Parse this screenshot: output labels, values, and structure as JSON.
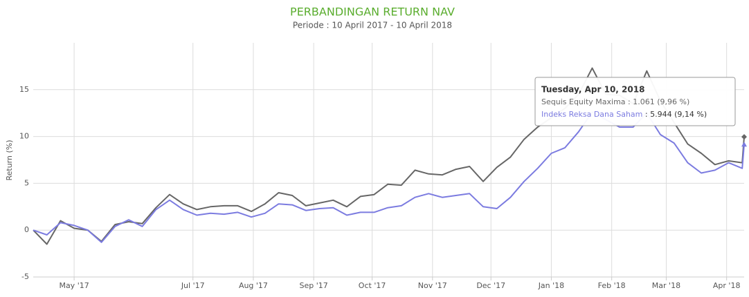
{
  "chart_data": {
    "type": "line",
    "title": "PERBANDINGAN RETURN NAV",
    "subtitle": "Periode : 10 April 2017 - 10 April 2018",
    "y_label": "Return (%)",
    "x": [
      "2017-04-10",
      "2017-04-17",
      "2017-04-24",
      "2017-05-01",
      "2017-05-08",
      "2017-05-15",
      "2017-05-22",
      "2017-05-29",
      "2017-06-05",
      "2017-06-12",
      "2017-06-19",
      "2017-06-26",
      "2017-07-03",
      "2017-07-10",
      "2017-07-17",
      "2017-07-24",
      "2017-07-31",
      "2017-08-07",
      "2017-08-14",
      "2017-08-21",
      "2017-08-28",
      "2017-09-04",
      "2017-09-11",
      "2017-09-18",
      "2017-09-25",
      "2017-10-02",
      "2017-10-09",
      "2017-10-16",
      "2017-10-23",
      "2017-10-30",
      "2017-11-06",
      "2017-11-13",
      "2017-11-20",
      "2017-11-27",
      "2017-12-04",
      "2017-12-11",
      "2017-12-18",
      "2017-12-25",
      "2018-01-01",
      "2018-01-08",
      "2018-01-15",
      "2018-01-22",
      "2018-01-29",
      "2018-02-05",
      "2018-02-12",
      "2018-02-19",
      "2018-02-26",
      "2018-03-05",
      "2018-03-12",
      "2018-03-19",
      "2018-03-26",
      "2018-04-02",
      "2018-04-09",
      "2018-04-10"
    ],
    "series": [
      {
        "name": "Sequis Equity Maxima",
        "color": "#666666",
        "marker": "diamond",
        "values": [
          0,
          -1.5,
          1.0,
          0.2,
          0.0,
          -1.2,
          0.6,
          0.9,
          0.7,
          2.4,
          3.8,
          2.8,
          2.2,
          2.5,
          2.6,
          2.6,
          2.0,
          2.8,
          4.0,
          3.7,
          2.6,
          2.9,
          3.2,
          2.5,
          3.6,
          3.8,
          4.9,
          4.8,
          6.4,
          6.0,
          5.9,
          6.5,
          6.8,
          5.2,
          6.7,
          7.8,
          9.7,
          11.0,
          12.0,
          13.0,
          14.5,
          17.3,
          14.5,
          14.4,
          13.5,
          17.0,
          13.8,
          11.5,
          9.2,
          8.2,
          7.0,
          7.4,
          7.2,
          9.96
        ]
      },
      {
        "name": "Indeks Reksa Dana Saham",
        "color": "#7b7be0",
        "marker": "triangle",
        "values": [
          0,
          -0.5,
          0.8,
          0.5,
          0.0,
          -1.3,
          0.4,
          1.1,
          0.4,
          2.2,
          3.2,
          2.2,
          1.6,
          1.8,
          1.7,
          1.9,
          1.4,
          1.8,
          2.8,
          2.7,
          2.1,
          2.3,
          2.4,
          1.6,
          1.9,
          1.9,
          2.4,
          2.6,
          3.5,
          3.9,
          3.5,
          3.7,
          3.9,
          2.5,
          2.3,
          3.5,
          5.2,
          6.6,
          8.2,
          8.8,
          10.5,
          12.6,
          11.8,
          11.0,
          11.0,
          12.5,
          10.2,
          9.3,
          7.2,
          6.1,
          6.4,
          7.2,
          6.6,
          9.14
        ]
      }
    ],
    "xlim": [
      "2017-04-10",
      "2018-04-10"
    ],
    "xticks": [
      {
        "value": "2017-05-01",
        "label": "May '17"
      },
      {
        "value": "2017-07-01",
        "label": "Jul '17"
      },
      {
        "value": "2017-08-01",
        "label": "Aug '17"
      },
      {
        "value": "2017-09-01",
        "label": "Sep '17"
      },
      {
        "value": "2017-10-01",
        "label": "Oct '17"
      },
      {
        "value": "2017-11-01",
        "label": "Nov '17"
      },
      {
        "value": "2017-12-01",
        "label": "Dec '17"
      },
      {
        "value": "2018-01-01",
        "label": "Jan '18"
      },
      {
        "value": "2018-02-01",
        "label": "Feb '18"
      },
      {
        "value": "2018-03-01",
        "label": "Mar '18"
      },
      {
        "value": "2018-04-01",
        "label": "Apr '18"
      }
    ],
    "ylim": [
      -5,
      20
    ],
    "yticks": [
      -5,
      0,
      5,
      10,
      15
    ],
    "grid": true,
    "tooltip": {
      "header": "Tuesday, Apr 10, 2018",
      "rows": [
        ": 1.061 (9,96 %)",
        ": 5.944 (9,14 %)"
      ]
    }
  }
}
